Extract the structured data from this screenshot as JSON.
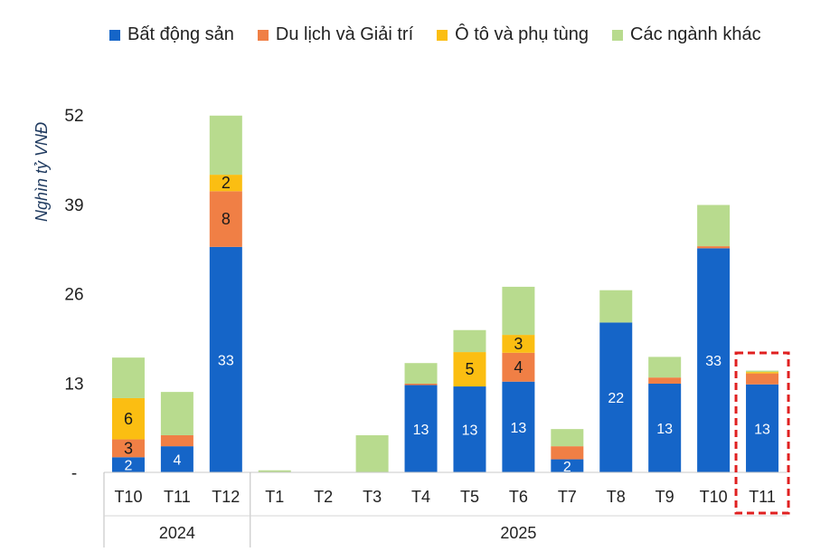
{
  "chart_data": {
    "type": "bar",
    "stacked": true,
    "ylabel": "Nghìn tỷ VNĐ",
    "ylim": [
      0,
      52
    ],
    "yticks": [
      0,
      13,
      26,
      39,
      52
    ],
    "ytick_labels": [
      "-",
      "13",
      "26",
      "39",
      "52"
    ],
    "categories": [
      "T10",
      "T11",
      "T12",
      "T1",
      "T2",
      "T3",
      "T4",
      "T5",
      "T6",
      "T7",
      "T8",
      "T9",
      "T10",
      "T11"
    ],
    "year_groups": [
      {
        "label": "2024",
        "start": 0,
        "end": 2
      },
      {
        "label": "2025",
        "start": 3,
        "end": 13
      }
    ],
    "highlight_index": 13,
    "legend_position": "top",
    "series": [
      {
        "name": "Bất động sản",
        "color": "#1565C8",
        "values": [
          2.2,
          3.8,
          32.8,
          0,
          0,
          0,
          12.7,
          12.5,
          13.2,
          1.9,
          21.8,
          12.9,
          32.6,
          12.8
        ],
        "labels": [
          "2",
          "4",
          "33",
          "",
          "",
          "",
          "13",
          "13",
          "13",
          "2",
          "22",
          "13",
          "33",
          "13"
        ]
      },
      {
        "name": "Du lịch và Giải trí",
        "color": "#F07F45",
        "values": [
          2.6,
          1.6,
          8.1,
          0,
          0,
          0,
          0.2,
          0,
          4.2,
          1.9,
          0,
          0.9,
          0.3,
          1.6
        ],
        "labels": [
          "3",
          "",
          "8",
          "",
          "",
          "",
          "",
          "",
          "4",
          "",
          "",
          "",
          "",
          ""
        ]
      },
      {
        "name": "Ô tô và phụ tùng",
        "color": "#FBBE12",
        "values": [
          6.0,
          0,
          2.4,
          0,
          0,
          0,
          0,
          5.0,
          2.6,
          0,
          0,
          0,
          0,
          0.2
        ],
        "labels": [
          "6",
          "",
          "2",
          "",
          "",
          "",
          "",
          "5",
          "3",
          "",
          "",
          "",
          "",
          ""
        ]
      },
      {
        "name": "Các ngành khác",
        "color": "#B8DB8E",
        "values": [
          5.9,
          6.3,
          8.6,
          0.3,
          0,
          5.4,
          3.0,
          3.2,
          7.0,
          2.5,
          4.7,
          3.0,
          6.0,
          0.2
        ],
        "labels": [
          "",
          "",
          "",
          "",
          "",
          "",
          "",
          "",
          "",
          "",
          "",
          "",
          "",
          ""
        ]
      }
    ]
  }
}
